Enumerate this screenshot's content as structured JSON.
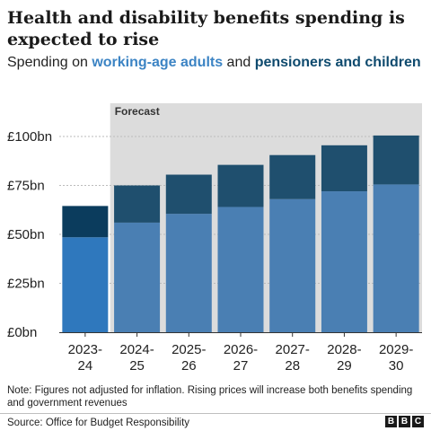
{
  "title": "Health and disability benefits spending is expected to rise",
  "subtitle": {
    "prefix": "Spending on ",
    "highlight1": "working-age adults",
    "middle": " and ",
    "highlight2": "pensioners and children"
  },
  "colors": {
    "working_age_actual": "#2f78bd",
    "pensioners_actual": "#0b3c5d",
    "working_age_forecast": "#4a7fb3",
    "pensioners_forecast": "#1f4f6e",
    "forecast_band": "#dcdcdc",
    "gridline": "#bbbbbb"
  },
  "chart_data": {
    "type": "bar",
    "stacked": true,
    "categories": [
      "2023-24",
      "2024-25",
      "2025-26",
      "2026-27",
      "2027-28",
      "2028-29",
      "2029-30"
    ],
    "category_lines": [
      [
        "2023-",
        "24"
      ],
      [
        "2024-",
        "25"
      ],
      [
        "2025-",
        "26"
      ],
      [
        "2026-",
        "27"
      ],
      [
        "2027-",
        "28"
      ],
      [
        "2028-",
        "29"
      ],
      [
        "2029-",
        "30"
      ]
    ],
    "series": [
      {
        "name": "working-age adults",
        "values": [
          48.5,
          56,
          60.5,
          64,
          68,
          72,
          75.5
        ]
      },
      {
        "name": "pensioners and children",
        "values": [
          16,
          19,
          20,
          21.5,
          22.5,
          23.5,
          25
        ]
      }
    ],
    "forecast_label": "Forecast",
    "forecast_from_index": 1,
    "yticks": [
      0,
      25,
      50,
      75,
      100
    ],
    "ytick_labels": [
      "£0bn",
      "£25bn",
      "£50bn",
      "£75bn",
      "£100bn"
    ],
    "ylim": [
      0,
      100
    ],
    "grid": true,
    "legend": "subtitle"
  },
  "note": "Note: Figures not adjusted for inflation. Rising prices will increase both benefits spending and government revenues",
  "source": "Source: Office for Budget Responsibility",
  "logo_letters": [
    "B",
    "B",
    "C"
  ]
}
